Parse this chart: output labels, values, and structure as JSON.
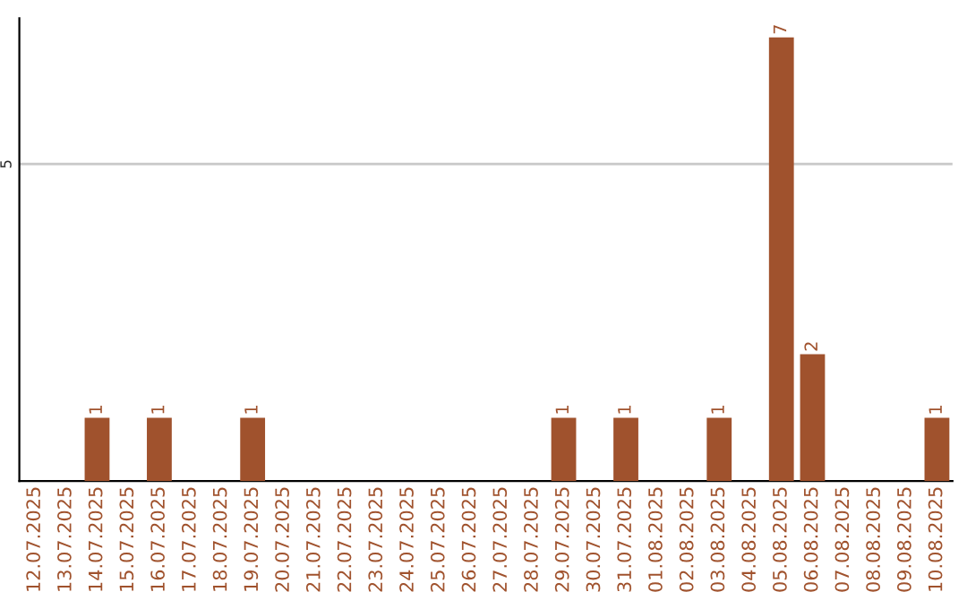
{
  "chart_data": {
    "type": "bar",
    "categories": [
      "12.07.2025",
      "13.07.2025",
      "14.07.2025",
      "15.07.2025",
      "16.07.2025",
      "17.07.2025",
      "18.07.2025",
      "19.07.2025",
      "20.07.2025",
      "21.07.2025",
      "22.07.2025",
      "23.07.2025",
      "24.07.2025",
      "25.07.2025",
      "26.07.2025",
      "27.07.2025",
      "28.07.2025",
      "29.07.2025",
      "30.07.2025",
      "31.07.2025",
      "01.08.2025",
      "02.08.2025",
      "03.08.2025",
      "04.08.2025",
      "05.08.2025",
      "06.08.2025",
      "07.08.2025",
      "08.08.2025",
      "09.08.2025",
      "10.08.2025"
    ],
    "values": [
      0,
      0,
      1,
      0,
      1,
      0,
      0,
      1,
      0,
      0,
      0,
      0,
      0,
      0,
      0,
      0,
      0,
      1,
      0,
      1,
      0,
      0,
      1,
      0,
      7,
      2,
      0,
      0,
      0,
      1
    ],
    "value_labels": [
      null,
      null,
      "1",
      null,
      "1",
      null,
      null,
      "1",
      null,
      null,
      null,
      null,
      null,
      null,
      null,
      null,
      null,
      "1",
      null,
      "1",
      null,
      null,
      "1",
      null,
      "7",
      "2",
      null,
      null,
      null,
      "1"
    ],
    "color": "#a0522d",
    "ylim": [
      0,
      7.3
    ],
    "yticks": [
      5
    ],
    "grid": "y",
    "legend": false
  }
}
